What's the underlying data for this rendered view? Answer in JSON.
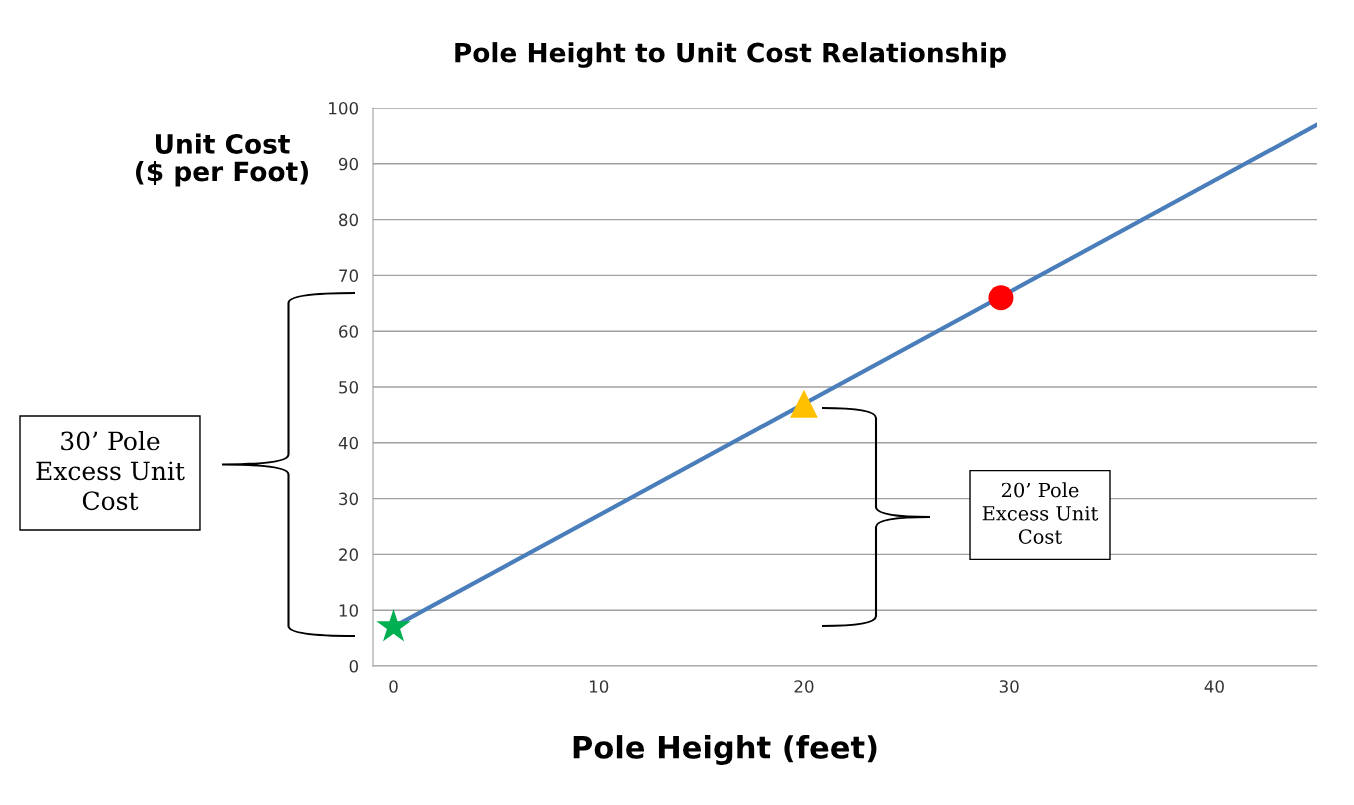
{
  "chart_data": {
    "type": "line",
    "title": "Pole Height to Unit Cost Relationship",
    "xlabel": "Pole Height (feet)",
    "ylabel": "Unit Cost\n($ per Foot)",
    "series": [
      {
        "color": "#4a7ebb",
        "x": [
          0,
          45
        ],
        "values": [
          7,
          97
        ],
        "marker": "none"
      },
      {
        "type": "scatter",
        "color": "#00b050",
        "x": [
          0
        ],
        "values": [
          7
        ],
        "marker": "star"
      },
      {
        "type": "scatter",
        "color": "#ffc000",
        "x": [
          20
        ],
        "values": [
          47
        ],
        "marker": "triangle"
      },
      {
        "type": "scatter",
        "color": "#ff0000",
        "x": [
          29.6
        ],
        "values": [
          66
        ],
        "marker": "circle"
      }
    ],
    "xlim": [
      -1,
      45
    ],
    "xticks": [
      0,
      10,
      20,
      30,
      40
    ],
    "ylim": [
      0,
      100
    ],
    "yticks": [
      0,
      10,
      20,
      30,
      40,
      50,
      60,
      70,
      80,
      90,
      100
    ],
    "grid": "y",
    "legend": false,
    "annotations": [
      "30’ Pole\nExcess Unit\nCost",
      "20’ Pole\nExcess Unit\nCost"
    ]
  }
}
